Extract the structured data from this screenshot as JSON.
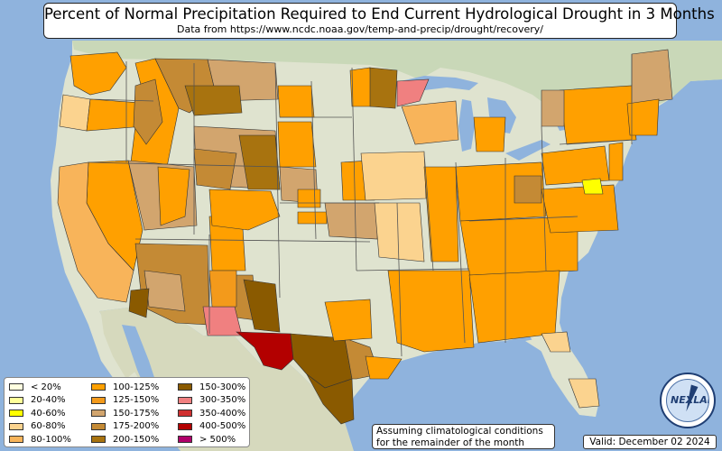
{
  "title": "Percent of Normal Precipitation Required to End Current Hydrological Drought in 3 Months",
  "subtitle": "Data from https://www.ncdc.noaa.gov/temp-and-precip/drought/recovery/",
  "colors": {
    "ocean": "#8fb3dd",
    "land": "#dfe3cf",
    "lt20": "#ffffe0",
    "20_40": "#ffff99",
    "40_60": "#ffff00",
    "60_80": "#fbd38f",
    "80_100": "#f8b45a",
    "100_125": "#ffa000",
    "125_150": "#f39a1b",
    "150_175": "#d2a56e",
    "175_200": "#c48a35",
    "200_150": "#a8730f",
    "150_300": "#8a5a00",
    "300_350": "#f08080",
    "350_400": "#d03030",
    "400_500": "#b30000",
    "gt500": "#b0006a"
  },
  "legend": {
    "col1": [
      {
        "label": "< 20%",
        "color": "#ffffe0"
      },
      {
        "label": "20-40%",
        "color": "#ffff99"
      },
      {
        "label": "40-60%",
        "color": "#ffff00"
      },
      {
        "label": "60-80%",
        "color": "#fbd38f"
      },
      {
        "label": "80-100%",
        "color": "#f8b45a"
      }
    ],
    "col2": [
      {
        "label": "100-125%",
        "color": "#ffa000"
      },
      {
        "label": "125-150%",
        "color": "#f39a1b"
      },
      {
        "label": "150-175%",
        "color": "#d2a56e"
      },
      {
        "label": "175-200%",
        "color": "#c48a35"
      },
      {
        "label": "200-150%",
        "color": "#a8730f"
      }
    ],
    "col3": [
      {
        "label": "150-300%",
        "color": "#8a5a00"
      },
      {
        "label": "300-350%",
        "color": "#f08080"
      },
      {
        "label": "350-400%",
        "color": "#d03030"
      },
      {
        "label": "400-500%",
        "color": "#b30000"
      },
      {
        "label": "> 500%",
        "color": "#b0006a"
      }
    ]
  },
  "note": {
    "line1": "Assuming climatological conditions",
    "line2": "for the remainder of the month"
  },
  "valid": "Valid: December 02 2024",
  "logo_text": "NEXLAB"
}
